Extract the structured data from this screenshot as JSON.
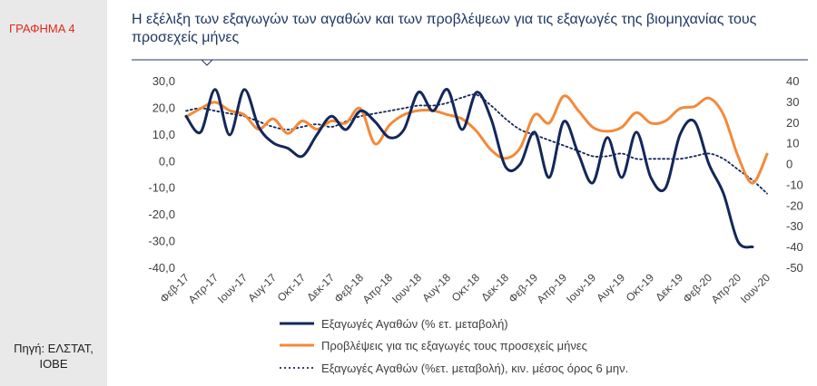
{
  "figure_label": "ΓΡΑΦΗΜΑ 4",
  "source_label": "Πηγή: ΕΛΣΤΑΤ, ΙΟΒΕ",
  "colors": {
    "navy": "#13275a",
    "orange": "#f28a3a",
    "title": "#1f3864",
    "red": "#e4281b"
  },
  "chart_data": {
    "type": "line",
    "title": "Η εξέλιξη των εξαγωγών των αγαθών και των προβλέψεων για τις εξαγωγές της βιομηχανίας τους προσεχείς μήνες",
    "x": [
      "Φεβ-17",
      "Μαρ-17",
      "Απρ-17",
      "Μαϊ-17",
      "Ιουν-17",
      "Ιουλ-17",
      "Αυγ-17",
      "Σεπ-17",
      "Οκτ-17",
      "Νοε-17",
      "Δεκ-17",
      "Ιαν-18",
      "Φεβ-18",
      "Μαρ-18",
      "Απρ-18",
      "Μαϊ-18",
      "Ιουν-18",
      "Ιουλ-18",
      "Αυγ-18",
      "Σεπ-18",
      "Οκτ-18",
      "Νοε-18",
      "Δεκ-18",
      "Ιαν-19",
      "Φεβ-19",
      "Μαρ-19",
      "Απρ-19",
      "Μαϊ-19",
      "Ιουν-19",
      "Ιουλ-19",
      "Αυγ-19",
      "Σεπ-19",
      "Οκτ-19",
      "Νοε-19",
      "Δεκ-19",
      "Ιαν-20",
      "Φεβ-20",
      "Μαρ-20",
      "Απρ-20",
      "Μαϊ-20",
      "Ιουν-20"
    ],
    "x_tick_labels": [
      "Φεβ-17",
      "Απρ-17",
      "Ιουν-17",
      "Αυγ-17",
      "Οκτ-17",
      "Δεκ-17",
      "Φεβ-18",
      "Απρ-18",
      "Ιουν-18",
      "Αυγ-18",
      "Οκτ-18",
      "Δεκ-18",
      "Φεβ-19",
      "Απρ-19",
      "Ιουν-19",
      "Αυγ-19",
      "Οκτ-19",
      "Δεκ-19",
      "Φεβ-20",
      "Απρ-20",
      "Ιουν-20"
    ],
    "y_left": {
      "lim": [
        -40,
        30
      ],
      "ticks": [
        "30,0",
        "20,0",
        "10,0",
        "0,0",
        "-10,0",
        "-20,0",
        "-30,0",
        "-40,0"
      ]
    },
    "y_right": {
      "lim": [
        -50,
        40
      ],
      "ticks": [
        "40",
        "30",
        "20",
        "10",
        "0",
        "-10",
        "-20",
        "-30",
        "-40",
        "-50"
      ]
    },
    "series": [
      {
        "name": "Εξαγωγές Αγαθών (% ετ. μεταβολή)",
        "axis": "left",
        "style": "solid",
        "values": [
          17,
          11,
          27,
          10,
          27,
          13,
          7,
          5,
          2,
          10,
          17,
          12,
          19,
          15,
          9,
          12,
          26,
          19,
          27,
          12,
          26,
          16,
          -2,
          -1,
          11,
          -6,
          15,
          3,
          -8,
          9,
          -6,
          11,
          -6,
          -10,
          10,
          15,
          -1,
          -12,
          -30,
          -32,
          null
        ]
      },
      {
        "name": "Προβλέψεις για τις εξαγωγές τους προσεχείς μήνες",
        "axis": "right",
        "style": "solid",
        "values": [
          23,
          27,
          30,
          26,
          24,
          17,
          22,
          15,
          21,
          17,
          21,
          20,
          27,
          10,
          19,
          24,
          26,
          26,
          24,
          22,
          16,
          7,
          3,
          8,
          24,
          20,
          33,
          26,
          18,
          16,
          18,
          25,
          20,
          21,
          27,
          28,
          32,
          24,
          4,
          -9,
          5
        ]
      },
      {
        "name": "Εξαγωγές Αγαθών (%ετ. μεταβολή), κιν. μέσος όρος 6 μην.",
        "axis": "left",
        "style": "dotted",
        "values": [
          19,
          20,
          19,
          18,
          17,
          15,
          13,
          12,
          13,
          14,
          13,
          15,
          17,
          18,
          19,
          20,
          21,
          21,
          22,
          24,
          25,
          21,
          16,
          12,
          10,
          8,
          6,
          4,
          2,
          2,
          3,
          1,
          1,
          1,
          1,
          2,
          3,
          1,
          -3,
          -7,
          -12
        ]
      }
    ],
    "grid": false,
    "legend_position": "bottom"
  }
}
